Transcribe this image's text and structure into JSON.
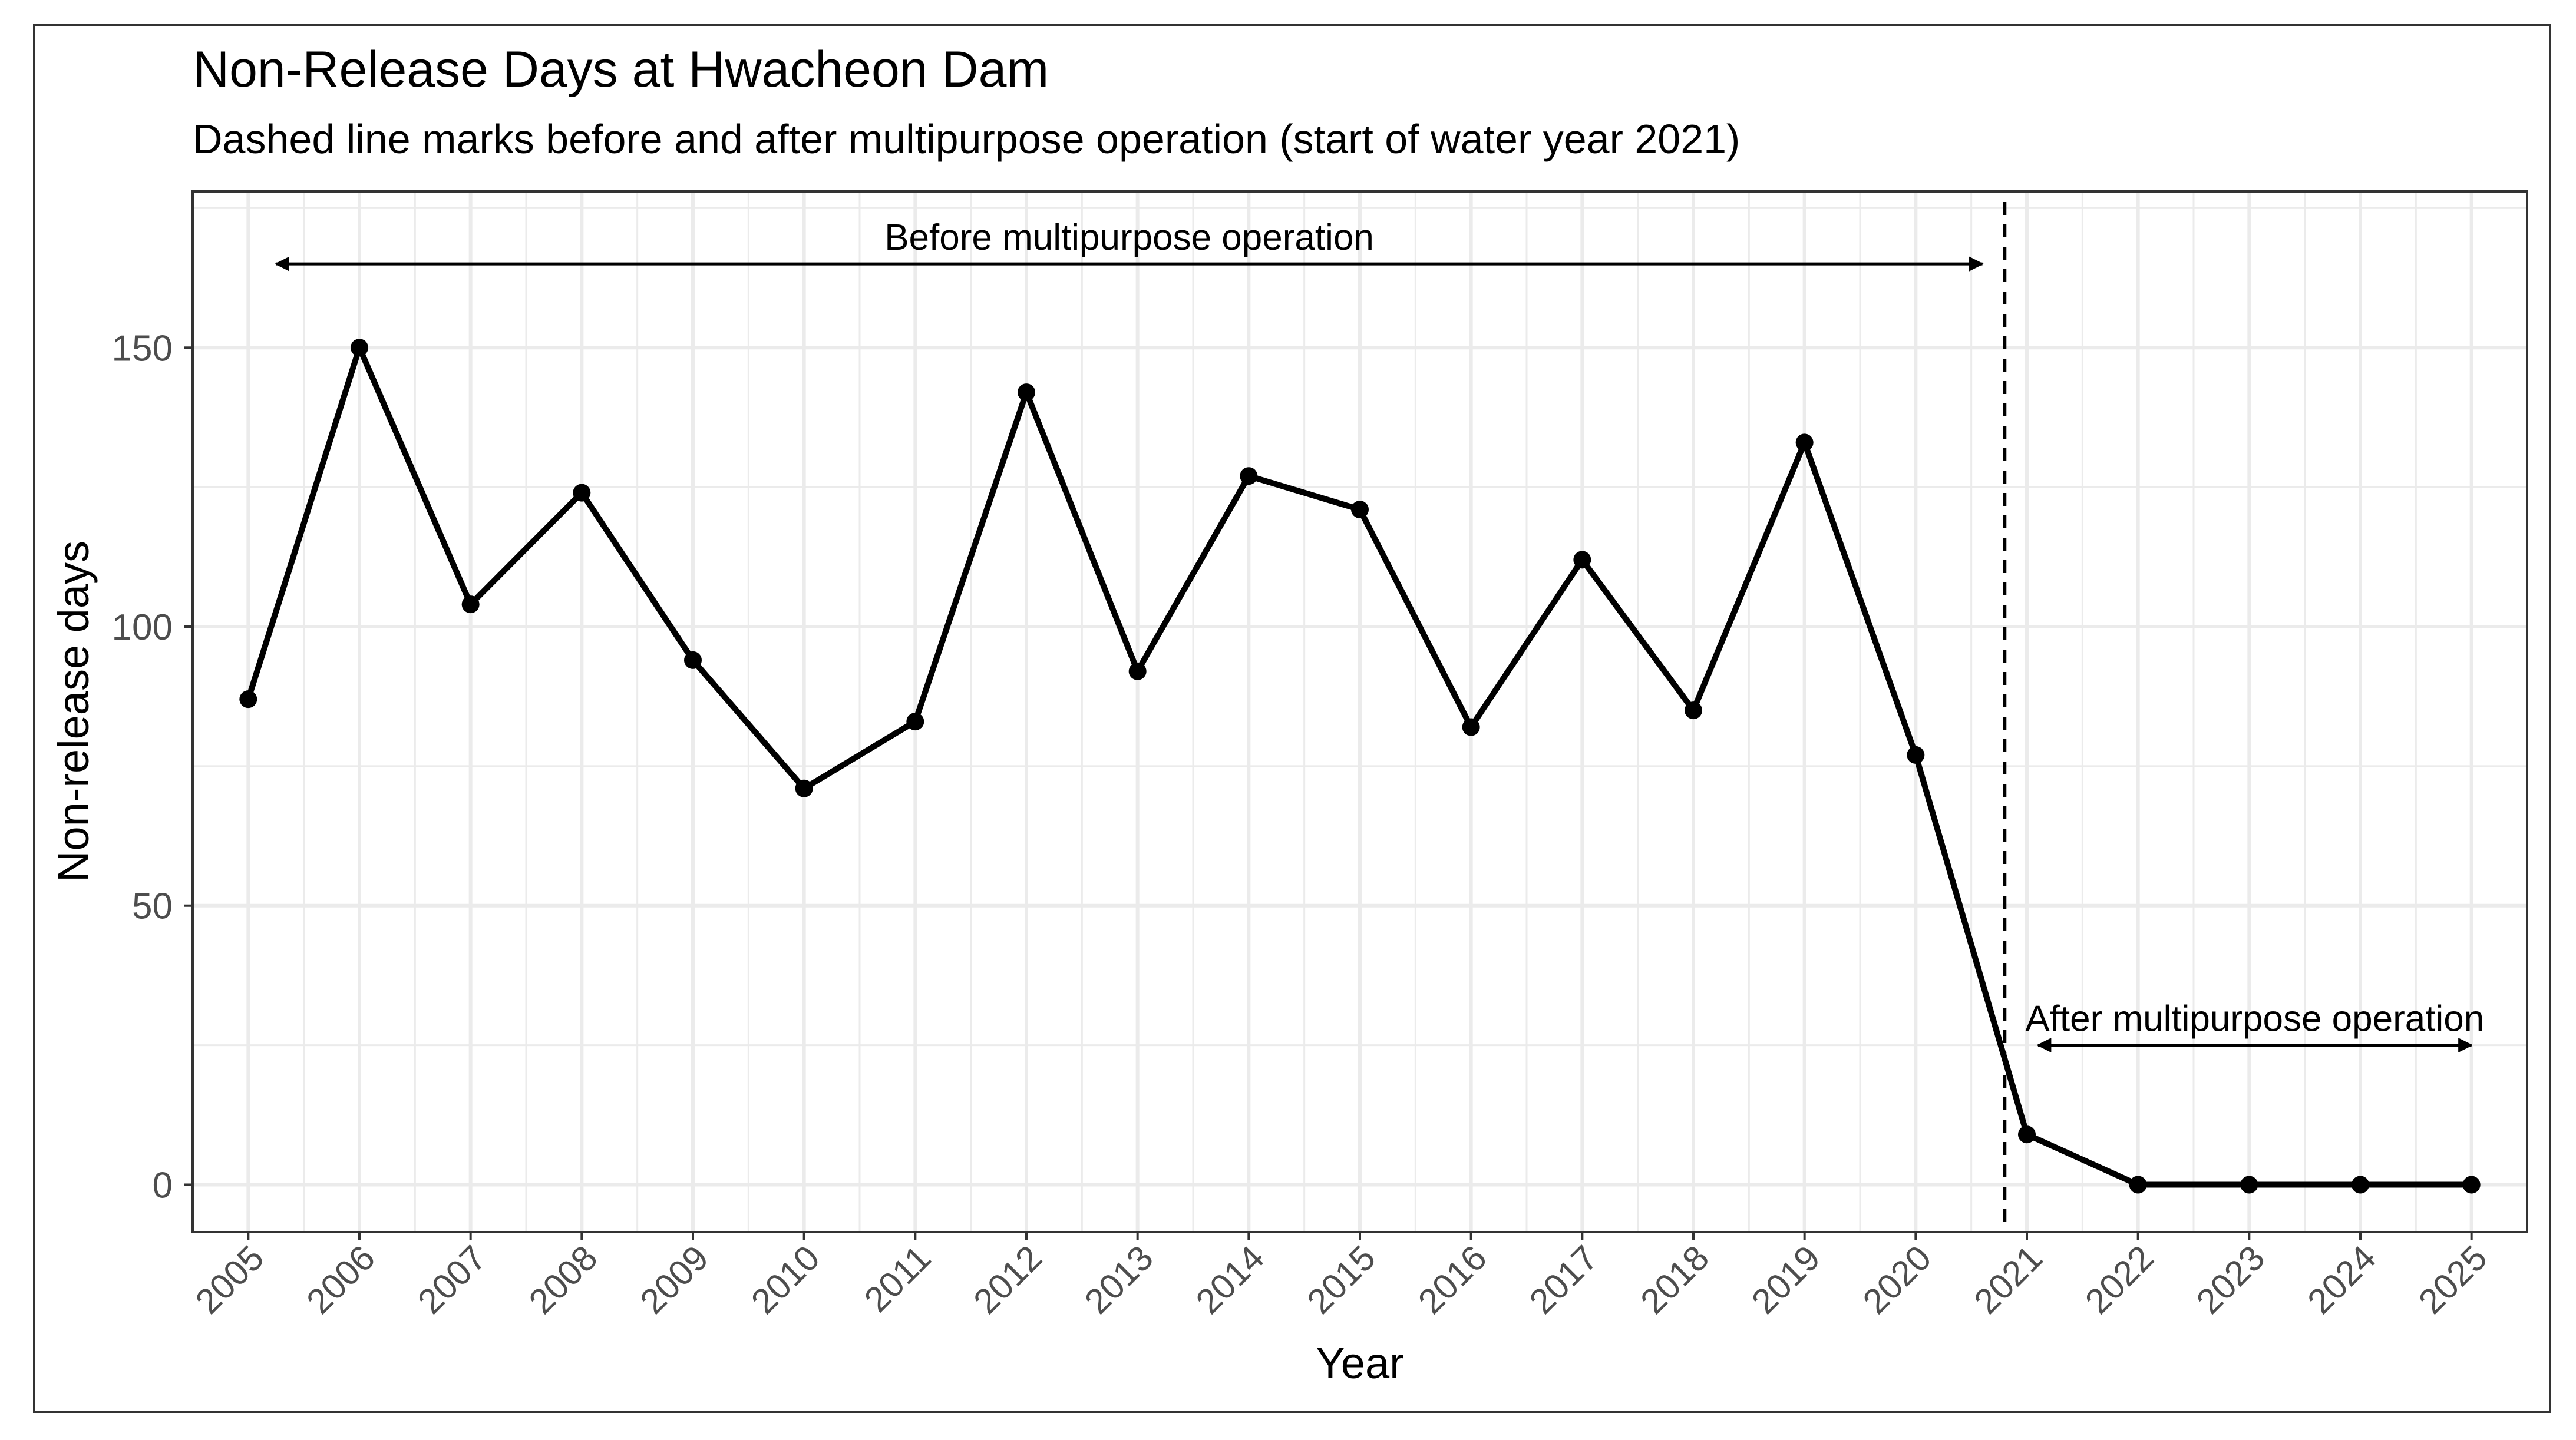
{
  "colors": {
    "line": "#000000",
    "grid": "#ebebeb",
    "panel_border": "#333333",
    "axis_text": "#4d4d4d",
    "background": "#ffffff"
  },
  "chart_data": {
    "type": "line",
    "title": "Non-Release Days at Hwacheon Dam",
    "subtitle": "Dashed line marks before and after multipurpose operation (start of water year 2021)",
    "xlabel": "Year",
    "ylabel": "Non-release days",
    "x": [
      2005,
      2006,
      2007,
      2008,
      2009,
      2010,
      2011,
      2012,
      2013,
      2014,
      2015,
      2016,
      2017,
      2018,
      2019,
      2020,
      2021,
      2022,
      2023,
      2024,
      2025
    ],
    "x_tick_labels": [
      "2005",
      "2006",
      "2007",
      "2008",
      "2009",
      "2010",
      "2011",
      "2012",
      "2013",
      "2014",
      "2015",
      "2016",
      "2017",
      "2018",
      "2019",
      "2020",
      "2021",
      "2022",
      "2023",
      "2024",
      "2025"
    ],
    "series": [
      {
        "name": "Non-release days",
        "values": [
          87,
          150,
          104,
          124,
          94,
          71,
          83,
          142,
          92,
          127,
          121,
          82,
          112,
          85,
          133,
          77,
          9,
          0,
          0,
          0,
          0
        ]
      }
    ],
    "y_ticks": [
      0,
      50,
      100,
      150
    ],
    "y_tick_labels": [
      "0",
      "50",
      "100",
      "150"
    ],
    "xlim": [
      2004.5,
      2025.5
    ],
    "ylim": [
      -8.5,
      178
    ],
    "grid": true,
    "reference_line": {
      "x": 2020.8,
      "style": "dashed"
    },
    "annotations": [
      {
        "label": "Before multipurpose operation",
        "arrow_from_x": 2005.25,
        "arrow_to_x": 2020.6,
        "arrow_y": 165
      },
      {
        "label": "After multipurpose operation",
        "arrow_from_x": 2021.1,
        "arrow_to_x": 2025.0,
        "arrow_y": 25
      }
    ]
  }
}
